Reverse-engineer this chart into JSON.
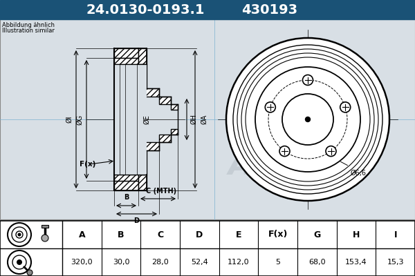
{
  "title_part": "24.0130-0193.1",
  "title_code": "430193",
  "header_bg": "#1a5276",
  "header_text_color": "#ffffff",
  "bg_color": "#c8d4dc",
  "diagram_bg": "#c8d4dc",
  "note_line1": "Abbildung ähnlich",
  "note_line2": "Illustration similar",
  "table_headers": [
    "A",
    "B",
    "C",
    "D",
    "E",
    "F(x)",
    "G",
    "H",
    "I"
  ],
  "table_values": [
    "320,0",
    "30,0",
    "28,0",
    "52,4",
    "112,0",
    "5",
    "68,0",
    "153,4",
    "15,3"
  ]
}
